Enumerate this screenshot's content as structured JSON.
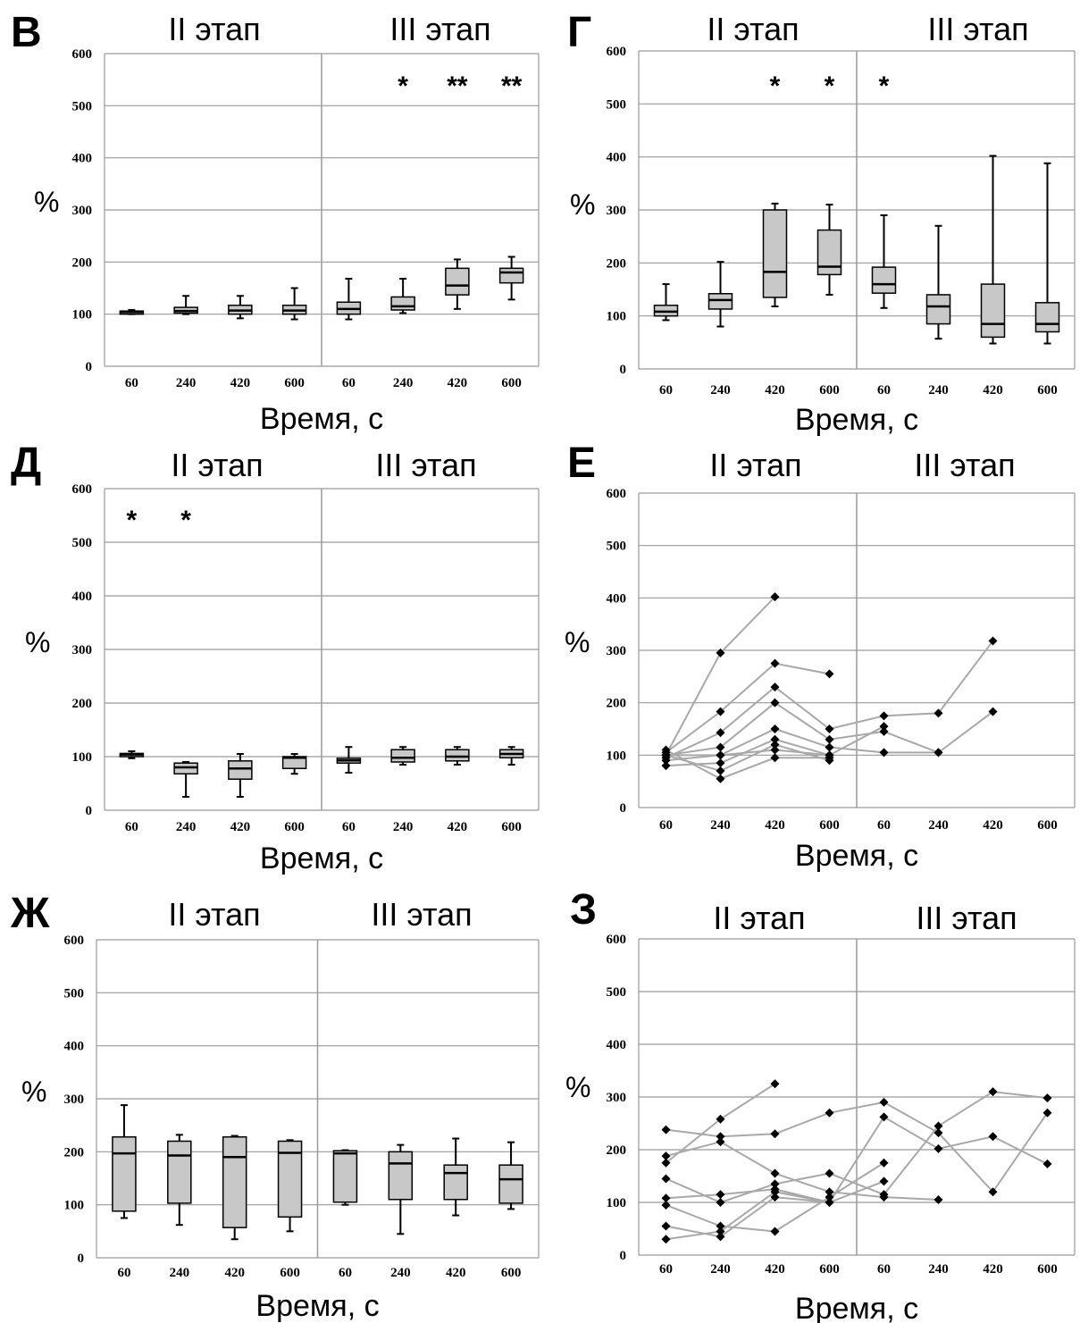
{
  "chart_data": [
    {
      "panel": "В",
      "type": "box",
      "stage_labels": [
        "II этап",
        "III этап"
      ],
      "categories": [
        "60",
        "240",
        "420",
        "600",
        "60",
        "240",
        "420",
        "600"
      ],
      "xlabel": "Время, с",
      "ylabel": "%",
      "yticks": [
        "0",
        "100",
        "200",
        "300",
        "400",
        "500",
        "600"
      ],
      "ylim": [
        0,
        600
      ],
      "boxes": [
        {
          "whisker_low": 100,
          "q1": 100,
          "median": 104,
          "q3": 106,
          "whisker_high": 108
        },
        {
          "whisker_low": 100,
          "q1": 102,
          "median": 106,
          "q3": 113,
          "whisker_high": 135
        },
        {
          "whisker_low": 92,
          "q1": 100,
          "median": 107,
          "q3": 117,
          "whisker_high": 135
        },
        {
          "whisker_low": 90,
          "q1": 100,
          "median": 107,
          "q3": 117,
          "whisker_high": 150
        },
        {
          "whisker_low": 90,
          "q1": 100,
          "median": 110,
          "q3": 123,
          "whisker_high": 168
        },
        {
          "whisker_low": 102,
          "q1": 108,
          "median": 115,
          "q3": 133,
          "whisker_high": 168
        },
        {
          "whisker_low": 110,
          "q1": 137,
          "median": 155,
          "q3": 188,
          "whisker_high": 205
        },
        {
          "whisker_low": 128,
          "q1": 160,
          "median": 180,
          "q3": 188,
          "whisker_high": 210
        }
      ],
      "significance": [
        "",
        "",
        "",
        "",
        "",
        "*",
        "**",
        "**"
      ]
    },
    {
      "panel": "Г",
      "type": "box",
      "stage_labels": [
        "II этап",
        "III этап"
      ],
      "categories": [
        "60",
        "240",
        "420",
        "600",
        "60",
        "240",
        "420",
        "600"
      ],
      "xlabel": "Время, с",
      "ylabel": "%",
      "yticks": [
        "0",
        "100",
        "200",
        "300",
        "400",
        "500",
        "600"
      ],
      "ylim": [
        0,
        600
      ],
      "boxes": [
        {
          "whisker_low": 92,
          "q1": 100,
          "median": 108,
          "q3": 120,
          "whisker_high": 160
        },
        {
          "whisker_low": 80,
          "q1": 113,
          "median": 130,
          "q3": 142,
          "whisker_high": 202
        },
        {
          "whisker_low": 118,
          "q1": 135,
          "median": 183,
          "q3": 300,
          "whisker_high": 312
        },
        {
          "whisker_low": 140,
          "q1": 178,
          "median": 193,
          "q3": 262,
          "whisker_high": 310
        },
        {
          "whisker_low": 115,
          "q1": 143,
          "median": 160,
          "q3": 192,
          "whisker_high": 290
        },
        {
          "whisker_low": 57,
          "q1": 85,
          "median": 118,
          "q3": 140,
          "whisker_high": 270
        },
        {
          "whisker_low": 48,
          "q1": 60,
          "median": 85,
          "q3": 160,
          "whisker_high": 402
        },
        {
          "whisker_low": 48,
          "q1": 70,
          "median": 85,
          "q3": 125,
          "whisker_high": 388
        }
      ],
      "significance": [
        "",
        "",
        "*",
        "*",
        "*",
        "",
        "",
        ""
      ]
    },
    {
      "panel": "Д",
      "type": "box",
      "stage_labels": [
        "II этап",
        "III этап"
      ],
      "categories": [
        "60",
        "240",
        "420",
        "600",
        "60",
        "240",
        "420",
        "600"
      ],
      "xlabel": "Время, с",
      "ylabel": "%",
      "yticks": [
        "0",
        "100",
        "200",
        "300",
        "400",
        "500",
        "600"
      ],
      "ylim": [
        0,
        600
      ],
      "boxes": [
        {
          "whisker_low": 97,
          "q1": 100,
          "median": 104,
          "q3": 106,
          "whisker_high": 110
        },
        {
          "whisker_low": 25,
          "q1": 68,
          "median": 80,
          "q3": 88,
          "whisker_high": 90
        },
        {
          "whisker_low": 25,
          "q1": 58,
          "median": 78,
          "q3": 92,
          "whisker_high": 105
        },
        {
          "whisker_low": 68,
          "q1": 78,
          "median": 98,
          "q3": 100,
          "whisker_high": 105
        },
        {
          "whisker_low": 70,
          "q1": 88,
          "median": 93,
          "q3": 97,
          "whisker_high": 118
        },
        {
          "whisker_low": 85,
          "q1": 90,
          "median": 98,
          "q3": 113,
          "whisker_high": 118
        },
        {
          "whisker_low": 85,
          "q1": 92,
          "median": 100,
          "q3": 113,
          "whisker_high": 118
        },
        {
          "whisker_low": 85,
          "q1": 98,
          "median": 105,
          "q3": 113,
          "whisker_high": 118
        }
      ],
      "significance": [
        "*",
        "*",
        "",
        "",
        "",
        "",
        "",
        ""
      ]
    },
    {
      "panel": "Е",
      "type": "line",
      "stage_labels": [
        "II этап",
        "III этап"
      ],
      "categories": [
        "60",
        "240",
        "420",
        "600",
        "60",
        "240",
        "420",
        "600"
      ],
      "xlabel": "Время, с",
      "ylabel": "%",
      "yticks": [
        "0",
        "100",
        "200",
        "300",
        "400",
        "500",
        "600"
      ],
      "ylim": [
        0,
        600
      ],
      "series": [
        {
          "points": [
            [
              0,
              100
            ],
            [
              1,
              295
            ],
            [
              2,
              402
            ]
          ]
        },
        {
          "points": [
            [
              0,
              105
            ],
            [
              1,
              183
            ],
            [
              2,
              275
            ],
            [
              3,
              255
            ]
          ]
        },
        {
          "points": [
            [
              0,
              95
            ],
            [
              1,
              143
            ],
            [
              2,
              230
            ],
            [
              3,
              150
            ],
            [
              4,
              175
            ],
            [
              5,
              180
            ],
            [
              6,
              318
            ]
          ]
        },
        {
          "points": [
            [
              0,
              100
            ],
            [
              1,
              115
            ],
            [
              2,
              200
            ],
            [
              3,
              130
            ],
            [
              4,
              145
            ],
            [
              5,
              105
            ],
            [
              6,
              183
            ]
          ]
        },
        {
          "points": [
            [
              0,
              90
            ],
            [
              1,
              100
            ],
            [
              2,
              150
            ],
            [
              3,
              115
            ],
            [
              4,
              105
            ],
            [
              5,
              105
            ]
          ]
        },
        {
          "points": [
            [
              0,
              80
            ],
            [
              1,
              85
            ],
            [
              2,
              130
            ],
            [
              3,
              100
            ],
            [
              4,
              155
            ]
          ]
        },
        {
          "points": [
            [
              0,
              100
            ],
            [
              1,
              70
            ],
            [
              2,
              120
            ],
            [
              3,
              90
            ]
          ]
        },
        {
          "points": [
            [
              0,
              110
            ],
            [
              1,
              55
            ],
            [
              2,
              95
            ],
            [
              3,
              95
            ]
          ]
        },
        {
          "points": [
            [
              0,
              100
            ],
            [
              1,
              100
            ],
            [
              2,
              110
            ],
            [
              3,
              100
            ]
          ]
        }
      ]
    },
    {
      "panel": "Ж",
      "type": "box",
      "stage_labels": [
        "II этап",
        "III этап"
      ],
      "categories": [
        "60",
        "240",
        "420",
        "600",
        "60",
        "240",
        "420",
        "600"
      ],
      "xlabel": "Время, с",
      "ylabel": "%",
      "yticks": [
        "0",
        "100",
        "200",
        "300",
        "400",
        "500",
        "600"
      ],
      "ylim": [
        0,
        600
      ],
      "boxes": [
        {
          "whisker_low": 75,
          "q1": 88,
          "median": 197,
          "q3": 228,
          "whisker_high": 288
        },
        {
          "whisker_low": 62,
          "q1": 103,
          "median": 193,
          "q3": 220,
          "whisker_high": 232
        },
        {
          "whisker_low": 35,
          "q1": 57,
          "median": 190,
          "q3": 228,
          "whisker_high": 230
        },
        {
          "whisker_low": 50,
          "q1": 77,
          "median": 198,
          "q3": 220,
          "whisker_high": 222
        },
        {
          "whisker_low": 100,
          "q1": 105,
          "median": 197,
          "q3": 202,
          "whisker_high": 203
        },
        {
          "whisker_low": 45,
          "q1": 110,
          "median": 178,
          "q3": 200,
          "whisker_high": 213
        },
        {
          "whisker_low": 80,
          "q1": 110,
          "median": 160,
          "q3": 175,
          "whisker_high": 225
        },
        {
          "whisker_low": 92,
          "q1": 103,
          "median": 148,
          "q3": 175,
          "whisker_high": 218
        }
      ],
      "significance": [
        "",
        "",
        "",
        "",
        "",
        "",
        "",
        ""
      ]
    },
    {
      "panel": "З",
      "type": "line",
      "stage_labels": [
        "II этап",
        "III этап"
      ],
      "categories": [
        "60",
        "240",
        "420",
        "600",
        "60",
        "240",
        "420",
        "600"
      ],
      "xlabel": "Время, с",
      "ylabel": "%",
      "yticks": [
        "0",
        "100",
        "200",
        "300",
        "400",
        "500",
        "600"
      ],
      "ylim": [
        0,
        600
      ],
      "series": [
        {
          "points": [
            [
              0,
              175
            ],
            [
              1,
              258
            ],
            [
              2,
              325
            ]
          ]
        },
        {
          "points": [
            [
              0,
              238
            ],
            [
              1,
              225
            ],
            [
              2,
              230
            ],
            [
              3,
              270
            ],
            [
              4,
              290
            ],
            [
              5,
              232
            ],
            [
              6,
              120
            ],
            [
              7,
              270
            ]
          ]
        },
        {
          "points": [
            [
              0,
              188
            ],
            [
              1,
              215
            ],
            [
              2,
              155
            ],
            [
              3,
              120
            ],
            [
              4,
              110
            ],
            [
              5,
              105
            ]
          ]
        },
        {
          "points": [
            [
              0,
              145
            ],
            [
              1,
              100
            ],
            [
              2,
              135
            ],
            [
              3,
              155
            ],
            [
              4,
              115
            ],
            [
              5,
              245
            ],
            [
              6,
              310
            ],
            [
              7,
              298
            ]
          ]
        },
        {
          "points": [
            [
              0,
              108
            ],
            [
              1,
              115
            ],
            [
              2,
              125
            ],
            [
              3,
              100
            ],
            [
              4,
              262
            ],
            [
              5,
              202
            ],
            [
              6,
              225
            ],
            [
              7,
              173
            ]
          ]
        },
        {
          "points": [
            [
              0,
              95
            ],
            [
              1,
              55
            ],
            [
              2,
              45
            ],
            [
              3,
              110
            ],
            [
              4,
              175
            ]
          ]
        },
        {
          "points": [
            [
              0,
              55
            ],
            [
              1,
              35
            ],
            [
              2,
              110
            ],
            [
              3,
              100
            ],
            [
              4,
              140
            ]
          ]
        },
        {
          "points": [
            [
              0,
              30
            ],
            [
              1,
              45
            ],
            [
              2,
              120
            ],
            [
              3,
              100
            ]
          ]
        }
      ]
    }
  ]
}
